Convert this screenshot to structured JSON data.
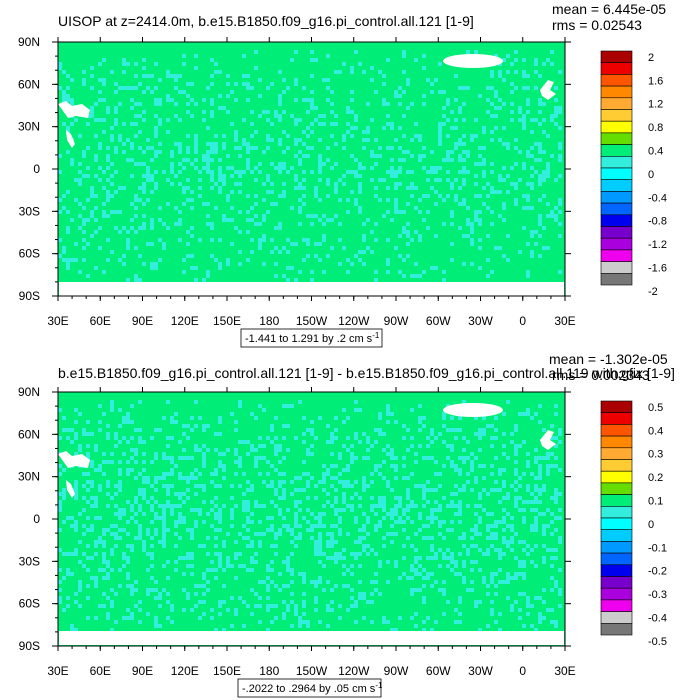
{
  "colors": {
    "ocean": "#00ee77",
    "speckle": "#33eedd",
    "land": "#ffffff",
    "axis": "#000000"
  },
  "panels": [
    {
      "title": "UISOP at z=2414.0m, b.e15.B1850.f09_g16.pi_control.all.121 [1-9]",
      "stats_mean": "mean = 6.445e-05",
      "stats_rms": "rms = 0.02543",
      "contour_info": "-1.441 to 1.291 by .2 cm s",
      "contour_unit_exp": "-1",
      "speckle_density": 0.25
    },
    {
      "title": "b.e15.B1850.f09_g16.pi_control.all.121 [1-9] - b.e15.B1850.f09_g16.pi_control.all.119 with.gfix [1-9]",
      "stats_mean": "mean = -1.302e-05",
      "stats_rms": "rms = 0.002343",
      "contour_info": "-.2022 to .2964 by .05 cm s",
      "contour_unit_exp": "-1",
      "speckle_density": 0.33
    }
  ],
  "chart_data": [
    {
      "type": "heatmap",
      "variable": "UISOP",
      "title": "UISOP at z=2414.0m, b.e15.B1850.f09_g16.pi_control.all.121 [1-9]",
      "xlabel": "",
      "ylabel": "",
      "x_ticks": [
        "30E",
        "60E",
        "90E",
        "120E",
        "150E",
        "180",
        "150W",
        "120W",
        "90W",
        "60W",
        "30W",
        "0",
        "30E"
      ],
      "y_ticks": [
        "90N",
        "60N",
        "30N",
        "0",
        "30S",
        "60S",
        "90S"
      ],
      "xlim": [
        30,
        390
      ],
      "ylim": [
        -90,
        90
      ],
      "colorbar": {
        "labels": [
          "2",
          "1.6",
          "1.2",
          "0.8",
          "0.4",
          "0",
          "-0.4",
          "-0.8",
          "-1.2",
          "-1.6",
          "-2"
        ],
        "colors": [
          "#aa0000",
          "#ee0000",
          "#ff5500",
          "#ff8800",
          "#ffaa33",
          "#ffcc33",
          "#ffff00",
          "#66dd00",
          "#00ee77",
          "#33eedd",
          "#00ffff",
          "#00ccff",
          "#0099ff",
          "#0066ff",
          "#0000ee",
          "#7700cc",
          "#aa00dd",
          "#ee00ee",
          "#cccccc",
          "#777777"
        ]
      },
      "mean": 6.445e-05,
      "rms": 0.02543,
      "min": -1.441,
      "max": 1.291,
      "interval": 0.2,
      "units": "cm s-1"
    },
    {
      "type": "heatmap",
      "title": "b.e15.B1850.f09_g16.pi_control.all.121 [1-9] - b.e15.B1850.f09_g16.pi_control.all.119 with.gfix [1-9]",
      "xlabel": "",
      "ylabel": "",
      "x_ticks": [
        "30E",
        "60E",
        "90E",
        "120E",
        "150E",
        "180",
        "150W",
        "120W",
        "90W",
        "60W",
        "30W",
        "0",
        "30E"
      ],
      "y_ticks": [
        "90N",
        "60N",
        "30N",
        "0",
        "30S",
        "60S",
        "90S"
      ],
      "xlim": [
        30,
        390
      ],
      "ylim": [
        -90,
        90
      ],
      "colorbar": {
        "labels": [
          "0.5",
          "0.4",
          "0.3",
          "0.2",
          "0.1",
          "0",
          "-0.1",
          "-0.2",
          "-0.3",
          "-0.4",
          "-0.5"
        ],
        "colors": [
          "#aa0000",
          "#ee0000",
          "#ff5500",
          "#ff8800",
          "#ffaa33",
          "#ffcc33",
          "#ffff00",
          "#66dd00",
          "#00ee77",
          "#33eedd",
          "#00ffff",
          "#00ccff",
          "#0099ff",
          "#0066ff",
          "#0000ee",
          "#7700cc",
          "#aa00dd",
          "#ee00ee",
          "#cccccc",
          "#777777"
        ]
      },
      "mean": -1.302e-05,
      "rms": 0.002343,
      "min": -0.2022,
      "max": 0.2964,
      "interval": 0.05,
      "units": "cm s-1"
    }
  ]
}
